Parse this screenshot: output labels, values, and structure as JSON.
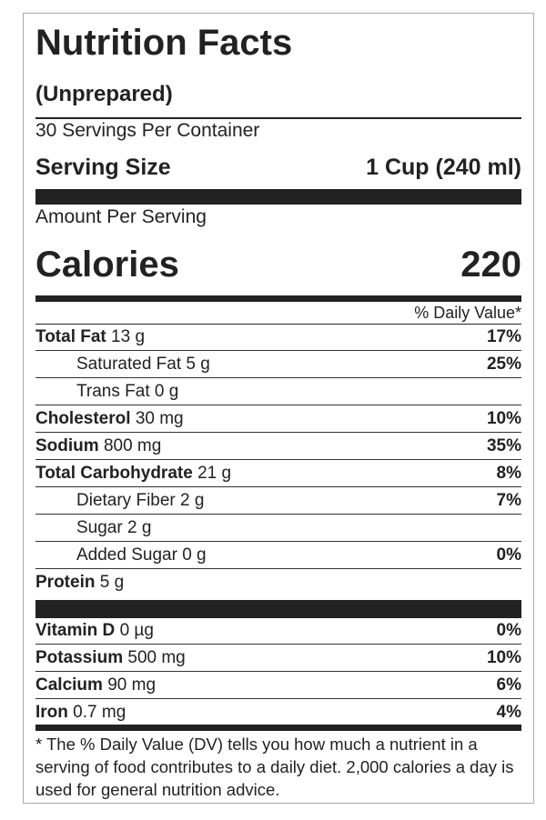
{
  "header": {
    "title": "Nutrition Facts",
    "subtitle": "(Unprepared)",
    "servings": "30 Servings Per Container",
    "serving_size_label": "Serving Size",
    "serving_size_value": "1 Cup (240 ml)"
  },
  "amount_per_serving": "Amount Per Serving",
  "calories": {
    "label": "Calories",
    "value": "220"
  },
  "daily_value_header": "% Daily Value*",
  "nutrients": [
    {
      "name": "Total Fat",
      "amount": "13 g",
      "dv": "17%",
      "indent": false
    },
    {
      "name": "Saturated Fat 5 g",
      "dv": "25%",
      "indent": true
    },
    {
      "name": "Trans Fat 0 g",
      "indent": true
    },
    {
      "name": "Cholesterol",
      "amount": "30 mg",
      "dv": "10%",
      "indent": false
    },
    {
      "name": "Sodium",
      "amount": "800 mg",
      "dv": "35%",
      "indent": false
    },
    {
      "name": "Total Carbohydrate",
      "amount": "21 g",
      "dv": "8%",
      "indent": false
    },
    {
      "name": "Dietary Fiber 2 g",
      "dv": "7%",
      "indent": true
    },
    {
      "name": "Sugar 2 g",
      "indent": true
    },
    {
      "name": "Added Sugar 0 g",
      "dv": "0%",
      "indent": true
    },
    {
      "name": "Protein",
      "amount": "5 g",
      "indent": false
    }
  ],
  "vitamins": [
    {
      "name": "Vitamin D",
      "amount": "0 µg",
      "dv": "0%"
    },
    {
      "name": "Potassium",
      "amount": "500 mg",
      "dv": "10%"
    },
    {
      "name": "Calcium",
      "amount": "90 mg",
      "dv": "6%"
    },
    {
      "name": "Iron",
      "amount": "0.7 mg",
      "dv": "4%"
    }
  ],
  "footnote": "* The % Daily Value (DV) tells you how much a nutrient in a serving of food contributes to a daily diet. 2,000 calories a day is used for general nutrition advice."
}
